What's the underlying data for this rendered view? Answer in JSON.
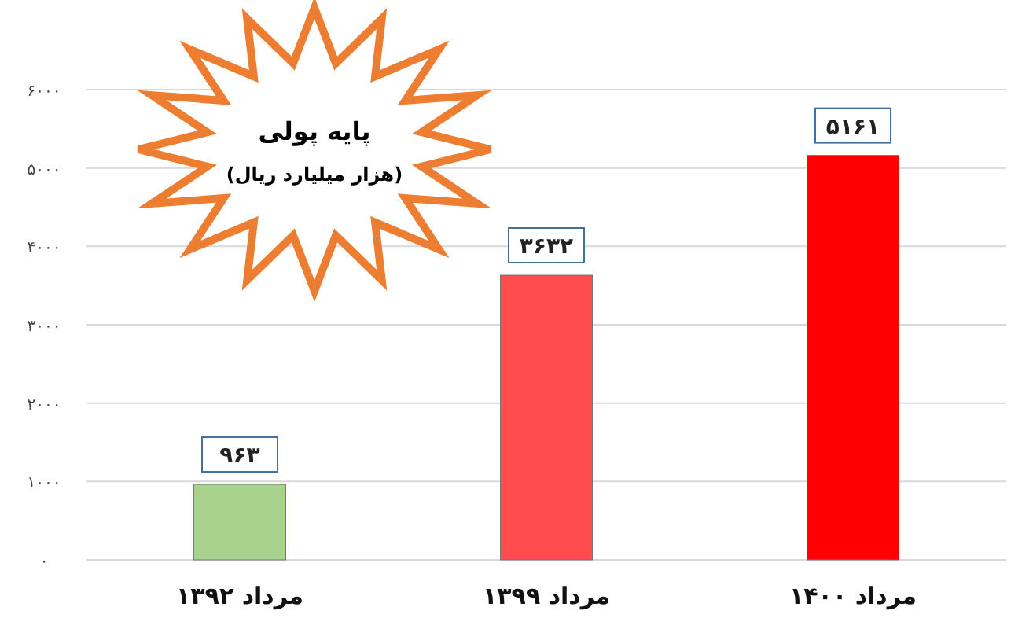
{
  "chart_data": {
    "type": "bar",
    "title": "پایه پولی",
    "subtitle": "(هزار میلیارد ریال)",
    "categories": [
      "مرداد ۱۳۹۲",
      "مرداد ۱۳۹۹",
      "مرداد ۱۴۰۰"
    ],
    "values": [
      963,
      3632,
      5161
    ],
    "value_labels": [
      "۹۶۳",
      "۳۶۳۲",
      "۵۱۶۱"
    ],
    "colors": [
      "#a9d18e",
      "#ff4d4d",
      "#ff0000"
    ],
    "ylim": [
      0,
      6000
    ],
    "yticks": [
      {
        "value": 0,
        "label": "۰"
      },
      {
        "value": 1000,
        "label": "۱۰۰۰"
      },
      {
        "value": 2000,
        "label": "۲۰۰۰"
      },
      {
        "value": 3000,
        "label": "۳۰۰۰"
      },
      {
        "value": 4000,
        "label": "۴۰۰۰"
      },
      {
        "value": 5000,
        "label": "۵۰۰۰"
      },
      {
        "value": 6000,
        "label": "۶۰۰۰"
      }
    ],
    "grid": "y"
  }
}
